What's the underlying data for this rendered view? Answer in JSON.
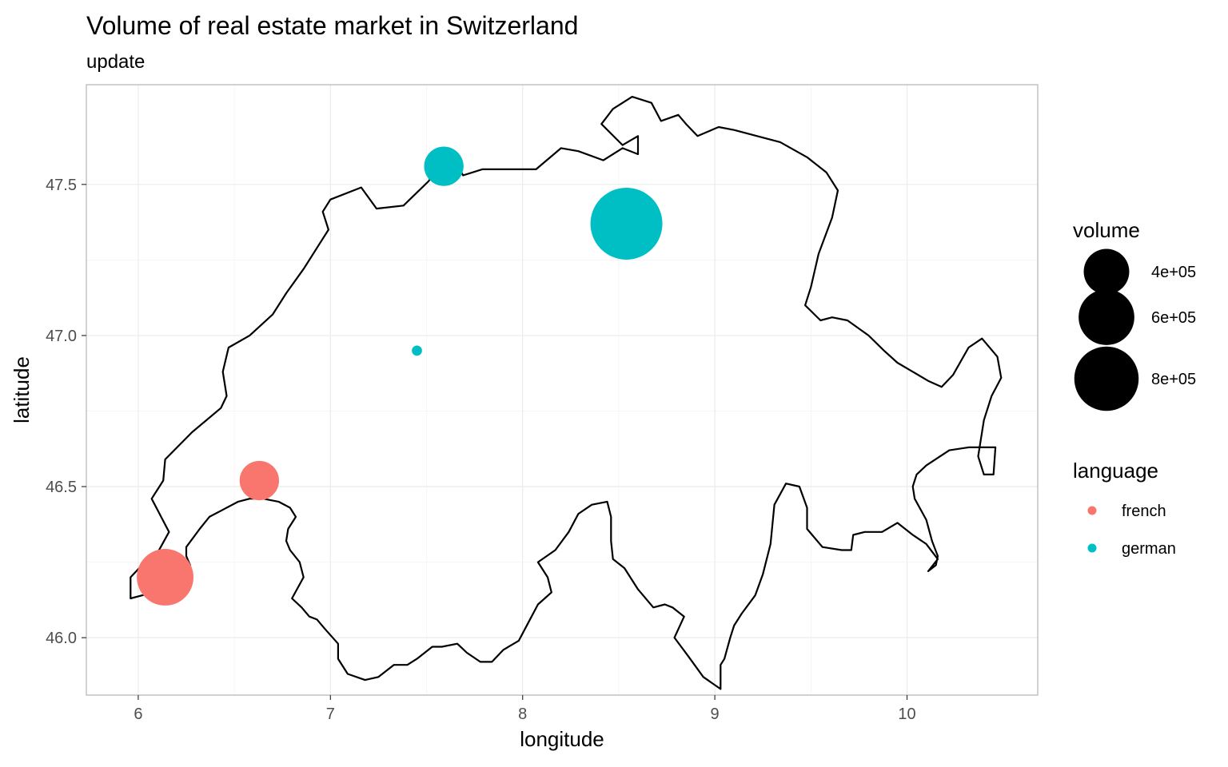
{
  "chart_data": {
    "type": "scatter",
    "title": "Volume of real estate market in Switzerland",
    "subtitle": "update",
    "xlabel": "longitude",
    "ylabel": "latitude",
    "xlim": [
      5.73,
      10.68
    ],
    "ylim": [
      45.81,
      47.83
    ],
    "x_ticks": [
      6,
      7,
      8,
      9,
      10
    ],
    "x_tick_labels": [
      "6",
      "7",
      "8",
      "9",
      "10"
    ],
    "y_ticks": [
      46.0,
      46.5,
      47.0,
      47.5
    ],
    "y_tick_labels": [
      "46.0",
      "46.5",
      "47.0",
      "47.5"
    ],
    "grid": true,
    "legend_position": "right",
    "series": [
      {
        "name": "french",
        "color": "#F8766D",
        "points": [
          {
            "x": 6.63,
            "y": 46.52,
            "volume": 300000
          },
          {
            "x": 6.14,
            "y": 46.2,
            "volume": 620000
          }
        ]
      },
      {
        "name": "german",
        "color": "#00BFC4",
        "points": [
          {
            "x": 7.59,
            "y": 47.56,
            "volume": 300000
          },
          {
            "x": 8.54,
            "y": 47.37,
            "volume": 1000000
          },
          {
            "x": 7.45,
            "y": 46.95,
            "volume": 20000
          }
        ]
      }
    ],
    "size_legend": {
      "title": "volume",
      "breaks": [
        400000,
        600000,
        800000
      ],
      "labels": [
        "4e+05",
        "6e+05",
        "8e+05"
      ]
    },
    "color_legend": {
      "title": "language",
      "entries": [
        {
          "label": "french",
          "color": "#F8766D"
        },
        {
          "label": "german",
          "color": "#00BFC4"
        }
      ]
    },
    "outline": {
      "name": "Switzerland",
      "coords": [
        [
          5.96,
          46.13
        ],
        [
          6.02,
          46.14
        ],
        [
          6.09,
          46.15
        ],
        [
          6.13,
          46.14
        ],
        [
          6.19,
          46.18
        ],
        [
          6.22,
          46.19
        ],
        [
          6.25,
          46.21
        ],
        [
          6.27,
          46.24
        ],
        [
          6.25,
          46.27
        ],
        [
          6.25,
          46.3
        ],
        [
          6.32,
          46.36
        ],
        [
          6.37,
          46.4
        ],
        [
          6.43,
          46.42
        ],
        [
          6.52,
          46.45
        ],
        [
          6.58,
          46.46
        ],
        [
          6.65,
          46.46
        ],
        [
          6.73,
          46.45
        ],
        [
          6.79,
          46.43
        ],
        [
          6.82,
          46.4
        ],
        [
          6.78,
          46.36
        ],
        [
          6.77,
          46.32
        ],
        [
          6.79,
          46.29
        ],
        [
          6.84,
          46.25
        ],
        [
          6.86,
          46.2
        ],
        [
          6.8,
          46.13
        ],
        [
          6.85,
          46.1
        ],
        [
          6.89,
          46.07
        ],
        [
          6.93,
          46.06
        ],
        [
          6.97,
          46.03
        ],
        [
          7.04,
          45.98
        ],
        [
          7.04,
          45.93
        ],
        [
          7.09,
          45.88
        ],
        [
          7.18,
          45.86
        ],
        [
          7.25,
          45.87
        ],
        [
          7.33,
          45.91
        ],
        [
          7.4,
          45.91
        ],
        [
          7.45,
          45.93
        ],
        [
          7.53,
          45.97
        ],
        [
          7.58,
          45.97
        ],
        [
          7.66,
          45.98
        ],
        [
          7.71,
          45.95
        ],
        [
          7.78,
          45.92
        ],
        [
          7.84,
          45.92
        ],
        [
          7.9,
          45.96
        ],
        [
          7.98,
          45.99
        ],
        [
          8.03,
          46.05
        ],
        [
          8.08,
          46.11
        ],
        [
          8.15,
          46.15
        ],
        [
          8.13,
          46.2
        ],
        [
          8.08,
          46.25
        ],
        [
          8.17,
          46.29
        ],
        [
          8.24,
          46.35
        ],
        [
          8.29,
          46.41
        ],
        [
          8.36,
          46.44
        ],
        [
          8.44,
          46.45
        ],
        [
          8.46,
          46.4
        ],
        [
          8.46,
          46.32
        ],
        [
          8.47,
          46.26
        ],
        [
          8.53,
          46.23
        ],
        [
          8.6,
          46.16
        ],
        [
          8.68,
          46.1
        ],
        [
          8.74,
          46.11
        ],
        [
          8.78,
          46.1
        ],
        [
          8.84,
          46.07
        ],
        [
          8.79,
          46.0
        ],
        [
          8.86,
          45.94
        ],
        [
          8.94,
          45.87
        ],
        [
          9.03,
          45.83
        ],
        [
          9.03,
          45.91
        ],
        [
          9.05,
          45.93
        ],
        [
          9.08,
          46.0
        ],
        [
          9.1,
          46.04
        ],
        [
          9.14,
          46.08
        ],
        [
          9.21,
          46.14
        ],
        [
          9.25,
          46.21
        ],
        [
          9.29,
          46.31
        ],
        [
          9.31,
          46.44
        ],
        [
          9.37,
          46.51
        ],
        [
          9.44,
          46.5
        ],
        [
          9.48,
          46.43
        ],
        [
          9.48,
          46.36
        ],
        [
          9.56,
          46.3
        ],
        [
          9.66,
          46.29
        ],
        [
          9.71,
          46.29
        ],
        [
          9.72,
          46.34
        ],
        [
          9.78,
          46.35
        ],
        [
          9.87,
          46.35
        ],
        [
          9.95,
          46.38
        ],
        [
          10.03,
          46.34
        ],
        [
          10.1,
          46.31
        ],
        [
          10.16,
          46.26
        ],
        [
          10.11,
          46.22
        ],
        [
          10.15,
          46.24
        ],
        [
          10.16,
          46.27
        ],
        [
          10.13,
          46.32
        ],
        [
          10.1,
          46.39
        ],
        [
          10.04,
          46.46
        ],
        [
          10.03,
          46.5
        ],
        [
          10.05,
          46.54
        ],
        [
          10.1,
          46.57
        ],
        [
          10.22,
          46.62
        ],
        [
          10.32,
          46.63
        ],
        [
          10.46,
          46.63
        ],
        [
          10.45,
          46.54
        ],
        [
          10.4,
          46.54
        ],
        [
          10.37,
          46.6
        ],
        [
          10.4,
          46.72
        ],
        [
          10.44,
          46.8
        ],
        [
          10.49,
          46.86
        ],
        [
          10.47,
          46.93
        ],
        [
          10.39,
          46.99
        ],
        [
          10.32,
          46.96
        ],
        [
          10.24,
          46.87
        ],
        [
          10.18,
          46.83
        ],
        [
          10.11,
          46.85
        ],
        [
          10.03,
          46.88
        ],
        [
          9.95,
          46.91
        ],
        [
          9.88,
          46.95
        ],
        [
          9.8,
          47.0
        ],
        [
          9.69,
          47.05
        ],
        [
          9.61,
          47.06
        ],
        [
          9.55,
          47.05
        ],
        [
          9.47,
          47.1
        ],
        [
          9.5,
          47.16
        ],
        [
          9.54,
          47.27
        ],
        [
          9.61,
          47.39
        ],
        [
          9.64,
          47.48
        ],
        [
          9.58,
          47.54
        ],
        [
          9.48,
          47.59
        ],
        [
          9.34,
          47.64
        ],
        [
          9.22,
          47.66
        ],
        [
          9.1,
          47.68
        ],
        [
          9.02,
          47.69
        ],
        [
          8.91,
          47.66
        ],
        [
          8.85,
          47.7
        ],
        [
          8.81,
          47.73
        ],
        [
          8.72,
          47.71
        ],
        [
          8.67,
          47.77
        ],
        [
          8.57,
          47.79
        ],
        [
          8.47,
          47.75
        ],
        [
          8.41,
          47.7
        ],
        [
          8.52,
          47.63
        ],
        [
          8.6,
          47.66
        ],
        [
          8.6,
          47.6
        ],
        [
          8.52,
          47.62
        ],
        [
          8.42,
          47.58
        ],
        [
          8.29,
          47.61
        ],
        [
          8.2,
          47.62
        ],
        [
          8.07,
          47.55
        ],
        [
          7.93,
          47.55
        ],
        [
          7.79,
          47.55
        ],
        [
          7.69,
          47.53
        ],
        [
          7.64,
          47.59
        ],
        [
          7.59,
          47.58
        ],
        [
          7.51,
          47.51
        ],
        [
          7.38,
          47.43
        ],
        [
          7.24,
          47.42
        ],
        [
          7.16,
          47.49
        ],
        [
          7.0,
          47.45
        ],
        [
          6.96,
          47.41
        ],
        [
          6.99,
          47.35
        ],
        [
          6.93,
          47.29
        ],
        [
          6.86,
          47.22
        ],
        [
          6.77,
          47.14
        ],
        [
          6.7,
          47.07
        ],
        [
          6.58,
          47.0
        ],
        [
          6.47,
          46.96
        ],
        [
          6.44,
          46.88
        ],
        [
          6.46,
          46.8
        ],
        [
          6.43,
          46.76
        ],
        [
          6.28,
          46.68
        ],
        [
          6.14,
          46.59
        ],
        [
          6.13,
          46.52
        ],
        [
          6.07,
          46.46
        ],
        [
          6.16,
          46.35
        ],
        [
          6.1,
          46.28
        ],
        [
          6.05,
          46.26
        ],
        [
          5.96,
          46.2
        ],
        [
          5.96,
          46.13
        ]
      ]
    }
  }
}
